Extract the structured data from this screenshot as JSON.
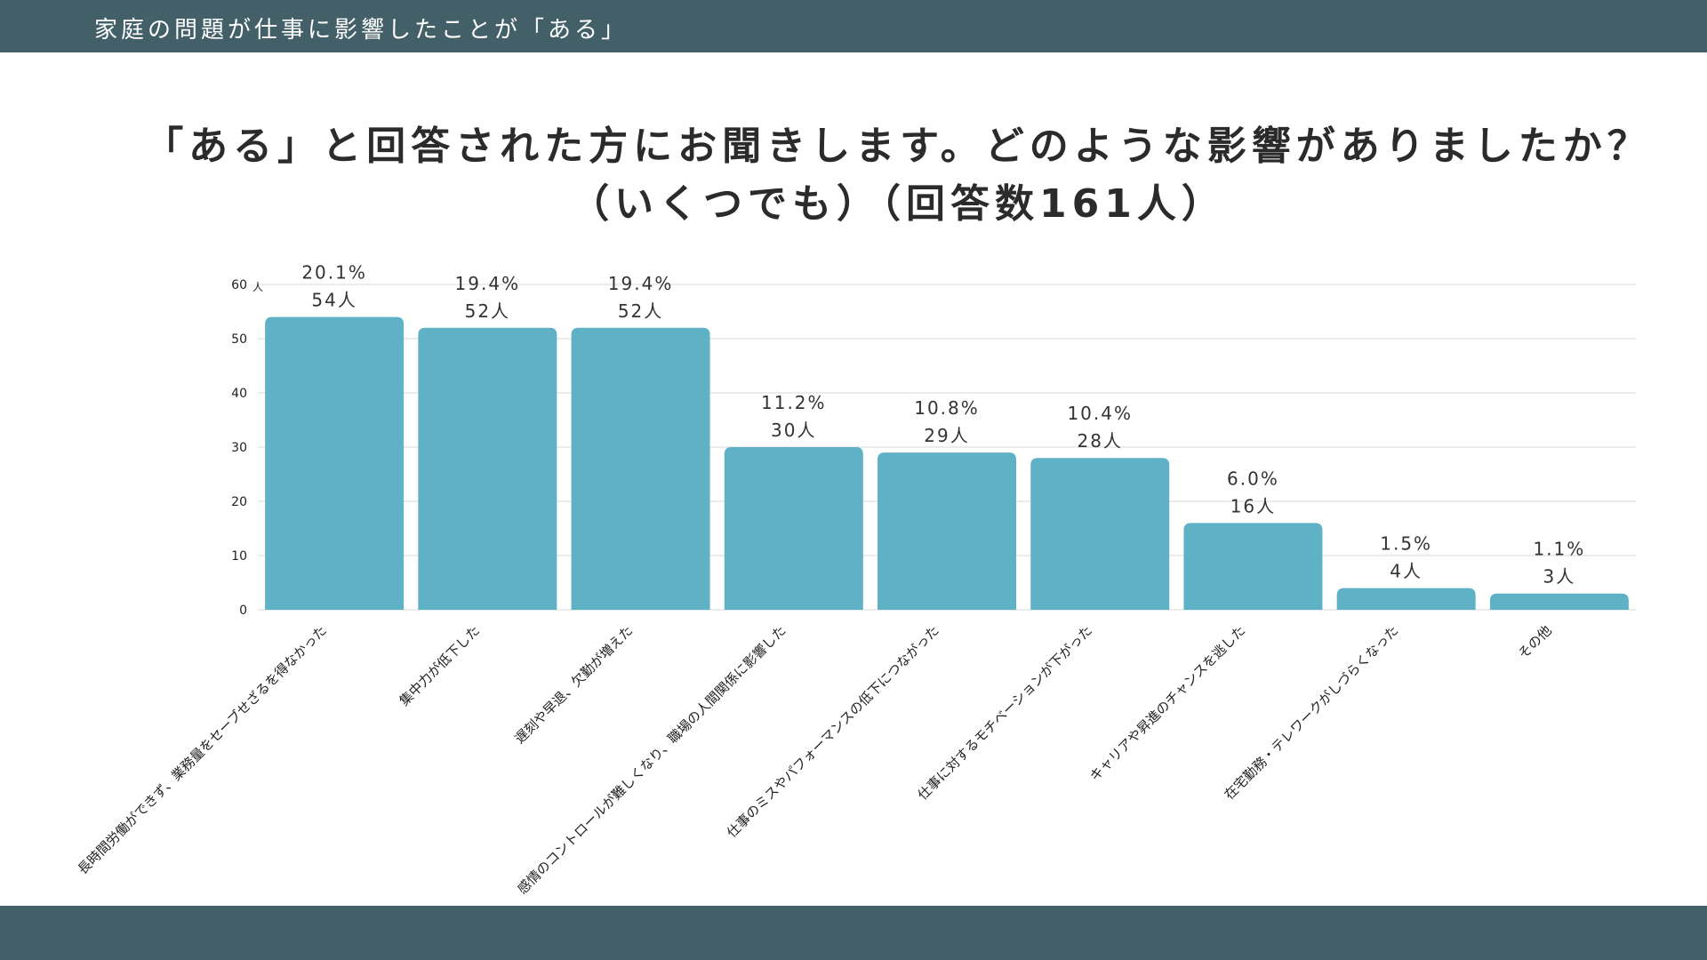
{
  "header": {
    "title": "家庭の問題が仕事に影響したことが「ある」"
  },
  "chart_data": {
    "type": "bar",
    "title_line1": "「ある」と回答された方にお聞きします。どのような影響がありましたか？",
    "title_line2": "（いくつでも）（回答数161人）",
    "ylabel": "人",
    "ylim": [
      0,
      60
    ],
    "yticks": [
      0,
      10,
      20,
      30,
      40,
      50,
      60
    ],
    "categories": [
      "長時間労働ができず、業務量をセーブせざるを得なかった",
      "集中力が低下した",
      "遅刻や早退、欠勤が増えた",
      "感情のコントロールが難しくなり、職場の人間関係に影響した",
      "仕事のミスやパフォーマンスの低下につながった",
      "仕事に対するモチベーションが下がった",
      "キャリアや昇進のチャンスを逃した",
      "在宅勤務・テレワークがしづらくなった",
      "その他"
    ],
    "values": [
      54,
      52,
      52,
      30,
      29,
      28,
      16,
      4,
      3
    ],
    "percent_labels": [
      "20.1%",
      "19.4%",
      "19.4%",
      "11.2%",
      "10.8%",
      "10.4%",
      "6.0%",
      "1.5%",
      "1.1%"
    ],
    "count_labels": [
      "54人",
      "52人",
      "52人",
      "30人",
      "29人",
      "28人",
      "16人",
      "4人",
      "3人"
    ],
    "bar_color": "#5fb1c6",
    "grid": true
  },
  "colors": {
    "bar_band": "#436068",
    "grid": "#d9d9d9"
  }
}
